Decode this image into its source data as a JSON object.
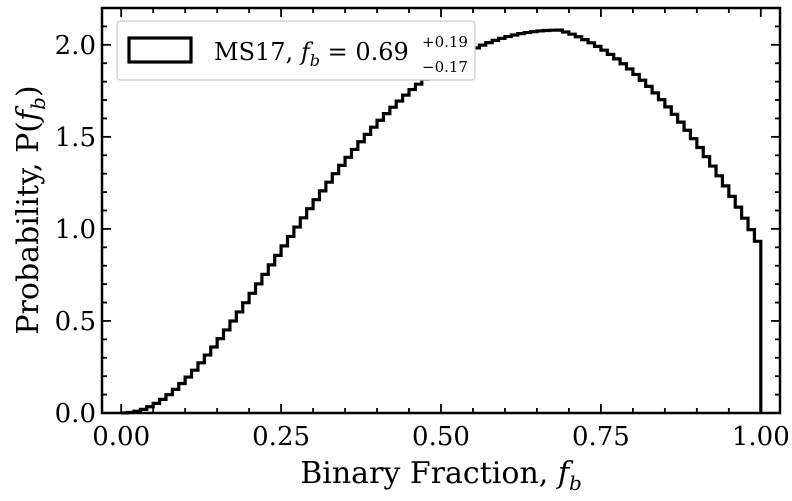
{
  "chart_data": {
    "type": "histogram-step",
    "xlabel_prefix": "Binary Fraction, ",
    "xlabel_var": "f",
    "xlabel_sub": "b",
    "ylabel_prefix": "Probability, P(",
    "ylabel_var": "f",
    "ylabel_sub": "b",
    "ylabel_suffix": ")",
    "xlim": [
      -0.03,
      1.03
    ],
    "ylim": [
      0.0,
      2.2
    ],
    "xticks": [
      0.0,
      0.25,
      0.5,
      0.75,
      1.0
    ],
    "xtick_labels": [
      "0.00",
      "0.25",
      "0.50",
      "0.75",
      "1.00"
    ],
    "yticks": [
      0.0,
      0.5,
      1.0,
      1.5,
      2.0
    ],
    "ytick_labels": [
      "0.0",
      "0.5",
      "1.0",
      "1.5",
      "2.0"
    ],
    "bin_width": 0.01,
    "bin_start": 0.0,
    "bin_end": 1.0,
    "peak_x": 0.685,
    "peak_y": 2.08,
    "end_y": 0.9,
    "legend": {
      "position": "upper-left",
      "label_name": "MS17, ",
      "label_var": "f",
      "label_sub": "b",
      "label_eq": " = 0.69",
      "label_upper": "+0.19",
      "label_lower": "−0.17"
    }
  }
}
